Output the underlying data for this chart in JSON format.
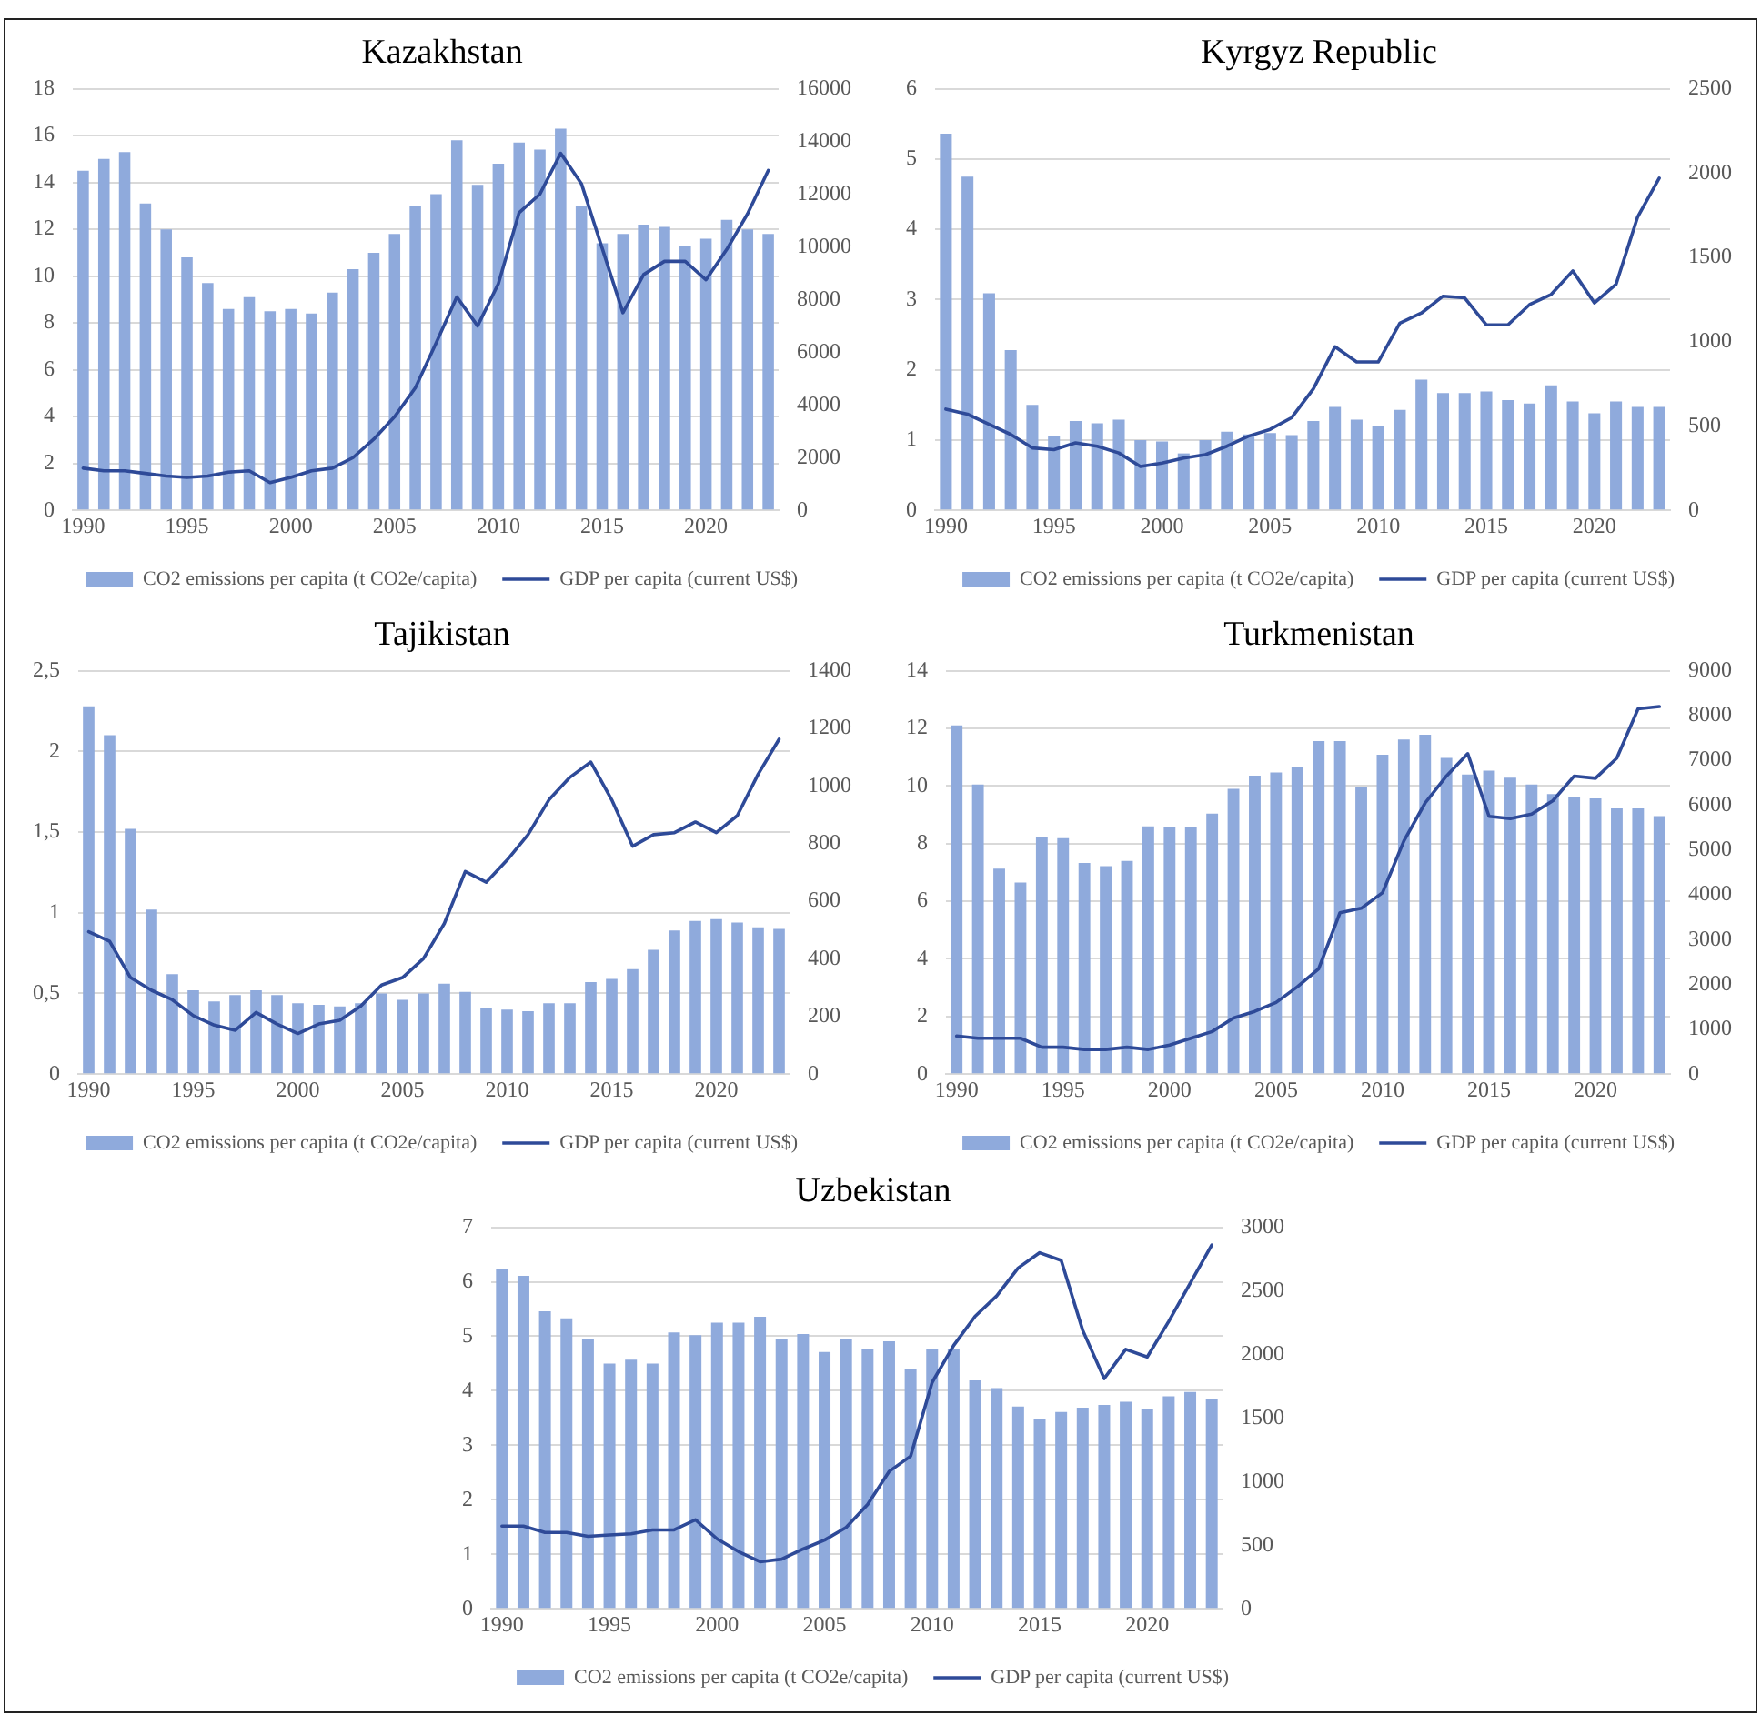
{
  "chart_data": [
    {
      "type": "bar",
      "title": "Kazakhstan",
      "categories": [
        "1990",
        null,
        null,
        null,
        null,
        "1995",
        null,
        null,
        null,
        null,
        "2000",
        null,
        null,
        null,
        null,
        "2005",
        null,
        null,
        null,
        null,
        "2010",
        null,
        null,
        null,
        null,
        "2015",
        null,
        null,
        null,
        null,
        "2020",
        null,
        null,
        null
      ],
      "series": [
        {
          "name": "CO2 emissions per capita (t CO2e/capita)",
          "color": "#8faadc",
          "values": [
            14.5,
            15.0,
            15.3,
            13.1,
            12.0,
            10.8,
            9.7,
            8.6,
            9.1,
            8.5,
            8.6,
            8.4,
            9.3,
            10.3,
            11.0,
            11.8,
            13.0,
            13.5,
            15.8,
            13.9,
            14.8,
            15.7,
            15.4,
            16.3,
            13.0,
            11.4,
            11.8,
            12.2,
            12.1,
            11.3,
            11.6,
            12.4,
            12.0,
            11.8
          ]
        },
        {
          "name": "GDP per capita (current US$)",
          "type": "line",
          "axis": "y2",
          "color": "#2e4a98",
          "values": [
            1600,
            1500,
            1500,
            1400,
            1300,
            1250,
            1300,
            1450,
            1500,
            1050,
            1250,
            1500,
            1600,
            2000,
            2700,
            3550,
            4650,
            6350,
            8100,
            7000,
            8600,
            11300,
            12000,
            13550,
            12400,
            9950,
            7500,
            8950,
            9450,
            9450,
            8750,
            9900,
            11250,
            12900
          ]
        }
      ],
      "ylim": [
        0,
        18
      ],
      "yticks": [
        0,
        2,
        4,
        6,
        8,
        10,
        12,
        14,
        16,
        18
      ],
      "y2lim": [
        0,
        16000
      ],
      "y2ticks": [
        0,
        2000,
        4000,
        6000,
        8000,
        10000,
        12000,
        14000,
        16000
      ],
      "grid": "y",
      "legend": "bottom"
    },
    {
      "type": "bar",
      "title": "Kyrgyz Republic",
      "categories": [
        "1990",
        null,
        null,
        null,
        null,
        "1995",
        null,
        null,
        null,
        null,
        "2000",
        null,
        null,
        null,
        null,
        "2005",
        null,
        null,
        null,
        null,
        "2010",
        null,
        null,
        null,
        null,
        "2015",
        null,
        null,
        null,
        null,
        "2020",
        null,
        null,
        null
      ],
      "series": [
        {
          "name": "CO2 emissions per capita (t CO2e/capita)",
          "color": "#8faadc",
          "values": [
            5.36,
            4.75,
            3.09,
            2.28,
            1.5,
            1.05,
            1.27,
            1.24,
            1.29,
            1.0,
            0.98,
            0.81,
            1.0,
            1.12,
            1.08,
            1.1,
            1.07,
            1.27,
            1.47,
            1.29,
            1.2,
            1.43,
            1.86,
            1.67,
            1.67,
            1.69,
            1.57,
            1.52,
            1.78,
            1.55,
            1.38,
            1.55,
            1.47,
            1.47
          ]
        },
        {
          "name": "GDP per capita (current US$)",
          "type": "line",
          "axis": "y2",
          "color": "#2e4a98",
          "values": [
            600,
            570,
            510,
            450,
            370,
            360,
            400,
            380,
            340,
            260,
            280,
            310,
            330,
            380,
            440,
            480,
            550,
            720,
            970,
            880,
            880,
            1110,
            1170,
            1270,
            1260,
            1100,
            1100,
            1220,
            1280,
            1420,
            1230,
            1340,
            1740,
            1970
          ]
        }
      ],
      "ylim": [
        0,
        6
      ],
      "yticks": [
        0,
        1,
        2,
        3,
        4,
        5,
        6
      ],
      "y2lim": [
        0,
        2500
      ],
      "y2ticks": [
        0,
        500,
        1000,
        1500,
        2000,
        2500
      ],
      "grid": "y",
      "legend": "bottom"
    },
    {
      "type": "bar",
      "title": "Tajikistan",
      "categories": [
        "1990",
        null,
        null,
        null,
        null,
        "1995",
        null,
        null,
        null,
        null,
        "2000",
        null,
        null,
        null,
        null,
        "2005",
        null,
        null,
        null,
        null,
        "2010",
        null,
        null,
        null,
        null,
        "2015",
        null,
        null,
        null,
        null,
        "2020",
        null,
        null,
        null
      ],
      "series": [
        {
          "name": "CO2 emissions per capita (t CO2e/capita)",
          "color": "#8faadc",
          "values": [
            2.28,
            2.1,
            1.52,
            1.02,
            0.62,
            0.52,
            0.45,
            0.49,
            0.52,
            0.49,
            0.44,
            0.43,
            0.42,
            0.44,
            0.5,
            0.46,
            0.5,
            0.56,
            0.51,
            0.41,
            0.4,
            0.39,
            0.44,
            0.44,
            0.57,
            0.59,
            0.65,
            0.77,
            0.89,
            0.95,
            0.96,
            0.94,
            0.91,
            0.9
          ]
        },
        {
          "name": "GDP per capita (current US$)",
          "type": "line",
          "axis": "y2",
          "color": "#2e4a98",
          "values": [
            494,
            461,
            335,
            291,
            258,
            203,
            170,
            152,
            214,
            174,
            141,
            174,
            187,
            236,
            309,
            335,
            401,
            523,
            703,
            666,
            743,
            831,
            952,
            1030,
            1083,
            952,
            791,
            831,
            838,
            875,
            838,
            897,
            1041,
            1162
          ]
        }
      ],
      "ylim": [
        0,
        2.5
      ],
      "yticks": [
        0,
        {
          "value": 0.5,
          "label": "0,5"
        },
        1,
        {
          "value": 1.5,
          "label": "1,5"
        },
        2,
        {
          "value": 2.5,
          "label": "2,5"
        }
      ],
      "y2lim": [
        0,
        1400
      ],
      "y2ticks": [
        0,
        200,
        400,
        600,
        800,
        1000,
        1200,
        1400
      ],
      "grid": "y",
      "legend": "bottom"
    },
    {
      "type": "bar",
      "title": "Turkmenistan",
      "categories": [
        "1990",
        null,
        null,
        null,
        null,
        "1995",
        null,
        null,
        null,
        null,
        "2000",
        null,
        null,
        null,
        null,
        "2005",
        null,
        null,
        null,
        null,
        "2010",
        null,
        null,
        null,
        null,
        "2015",
        null,
        null,
        null,
        null,
        "2020",
        null,
        null,
        null
      ],
      "series": [
        {
          "name": "CO2 emissions per capita (t CO2e/capita)",
          "color": "#8faadc",
          "values": [
            12.1,
            10.05,
            7.13,
            6.65,
            8.23,
            8.19,
            7.33,
            7.22,
            7.4,
            8.6,
            8.58,
            8.58,
            9.04,
            9.9,
            10.36,
            10.47,
            10.64,
            11.56,
            11.56,
            9.98,
            11.08,
            11.61,
            11.78,
            10.97,
            10.4,
            10.53,
            10.29,
            10.05,
            9.72,
            9.61,
            9.57,
            9.22,
            9.22,
            8.95
          ]
        },
        {
          "name": "GDP per capita (current US$)",
          "type": "line",
          "axis": "y2",
          "color": "#2e4a98",
          "values": [
            850,
            800,
            800,
            800,
            600,
            600,
            550,
            550,
            600,
            550,
            650,
            800,
            950,
            1250,
            1400,
            1600,
            1950,
            2350,
            3600,
            3700,
            4050,
            5200,
            6050,
            6650,
            7150,
            5750,
            5700,
            5800,
            6100,
            6650,
            6600,
            7050,
            8150,
            8200
          ]
        }
      ],
      "ylim": [
        0,
        14
      ],
      "yticks": [
        0,
        2,
        4,
        6,
        8,
        10,
        12,
        14
      ],
      "y2lim": [
        0,
        9000
      ],
      "y2ticks": [
        0,
        1000,
        2000,
        3000,
        4000,
        5000,
        6000,
        7000,
        8000,
        9000
      ],
      "grid": "y",
      "legend": "bottom"
    },
    {
      "type": "bar",
      "title": "Uzbekistan",
      "categories": [
        "1990",
        null,
        null,
        null,
        null,
        "1995",
        null,
        null,
        null,
        null,
        "2000",
        null,
        null,
        null,
        null,
        "2005",
        null,
        null,
        null,
        null,
        "2010",
        null,
        null,
        null,
        null,
        "2015",
        null,
        null,
        null,
        null,
        "2020",
        null,
        null,
        null
      ],
      "series": [
        {
          "name": "CO2 emissions per capita (t CO2e/capita)",
          "color": "#8faadc",
          "values": [
            6.24,
            6.11,
            5.46,
            5.33,
            4.96,
            4.5,
            4.57,
            4.5,
            5.07,
            5.02,
            5.25,
            5.25,
            5.36,
            4.96,
            5.04,
            4.71,
            4.96,
            4.76,
            4.91,
            4.4,
            4.76,
            4.77,
            4.19,
            4.05,
            3.71,
            3.48,
            3.61,
            3.69,
            3.74,
            3.8,
            3.67,
            3.9,
            3.98,
            3.84
          ]
        },
        {
          "name": "GDP per capita (current US$)",
          "type": "line",
          "axis": "y2",
          "color": "#2e4a98",
          "values": [
            650,
            650,
            600,
            600,
            570,
            580,
            590,
            620,
            620,
            700,
            550,
            450,
            370,
            390,
            470,
            540,
            640,
            820,
            1080,
            1200,
            1780,
            2070,
            2300,
            2460,
            2680,
            2800,
            2740,
            2190,
            1810,
            2040,
            1980,
            2260,
            2560,
            2860
          ]
        }
      ],
      "ylim": [
        0,
        7
      ],
      "yticks": [
        0,
        1,
        2,
        3,
        4,
        5,
        6,
        7
      ],
      "y2lim": [
        0,
        3000
      ],
      "y2ticks": [
        0,
        500,
        1000,
        1500,
        2000,
        2500,
        3000
      ],
      "grid": "y",
      "legend": "bottom"
    }
  ]
}
